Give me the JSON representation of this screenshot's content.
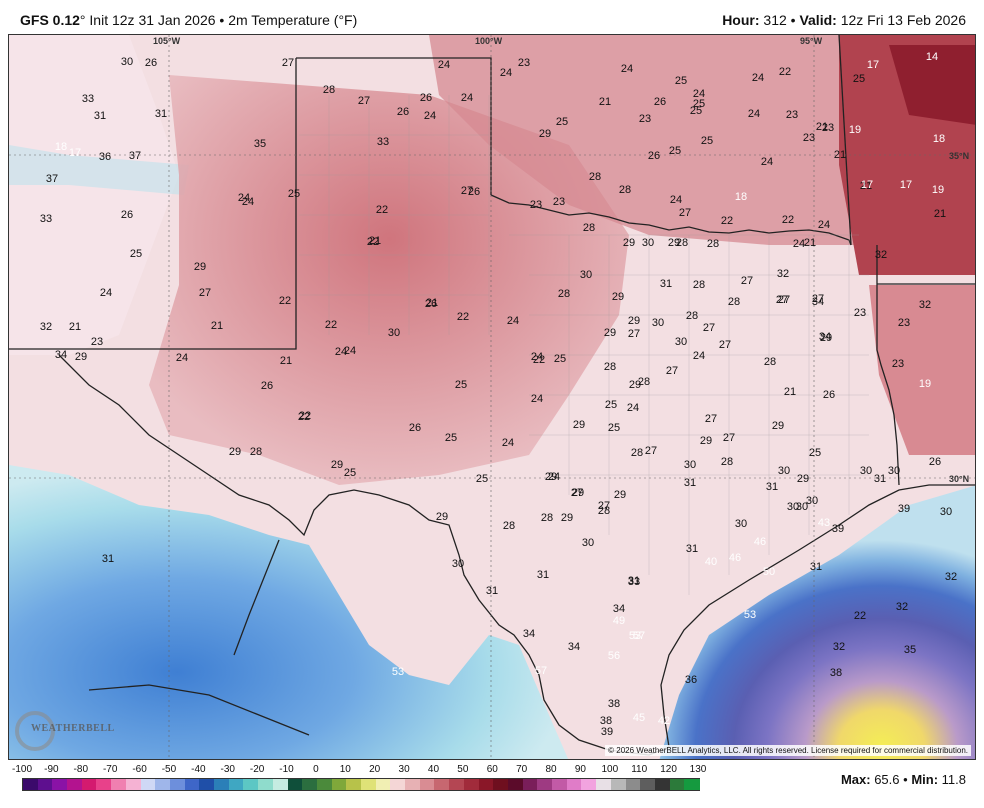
{
  "header": {
    "model": "GFS 0.12",
    "deg": "°",
    "init": "Init 12z 31 Jan 2026",
    "bullet": "•",
    "variable": "2m Temperature (°F)",
    "hour_label": "Hour:",
    "hour": "312",
    "valid_label": "Valid:",
    "valid": "12z Fri 13 Feb 2026"
  },
  "map": {
    "longitude_labels": [
      "105°W",
      "100°W",
      "95°W"
    ],
    "latitude_labels": [
      "35°N",
      "30°N"
    ],
    "copyright": "© 2026 WeatherBELL Analytics, LLC. All rights reserved. License required for commercial distribution.",
    "logo": "WEATHERBELL",
    "temps": [
      {
        "v": "30"
      },
      {
        "v": "26"
      },
      {
        "v": "27"
      },
      {
        "v": "24"
      },
      {
        "v": "24"
      },
      {
        "v": "23"
      },
      {
        "v": "24"
      },
      {
        "v": "24"
      },
      {
        "v": "22"
      },
      {
        "v": "17"
      },
      {
        "v": "14"
      },
      {
        "v": "33"
      },
      {
        "v": "31"
      },
      {
        "v": "31"
      },
      {
        "v": "28"
      },
      {
        "v": "27"
      },
      {
        "v": "26"
      },
      {
        "v": "26"
      },
      {
        "v": "24"
      },
      {
        "v": "24"
      },
      {
        "v": "25"
      },
      {
        "v": "24"
      },
      {
        "v": "25"
      },
      {
        "v": "18"
      },
      {
        "v": "17"
      },
      {
        "v": "36"
      },
      {
        "v": "37"
      },
      {
        "v": "35"
      },
      {
        "v": "33"
      },
      {
        "v": "29"
      },
      {
        "v": "25"
      },
      {
        "v": "21"
      },
      {
        "v": "23"
      },
      {
        "v": "26"
      },
      {
        "v": "25"
      },
      {
        "v": "25"
      },
      {
        "v": "24"
      },
      {
        "v": "23"
      },
      {
        "v": "21"
      },
      {
        "v": "19"
      },
      {
        "v": "18"
      },
      {
        "v": "37"
      },
      {
        "v": "24"
      },
      {
        "v": "21"
      },
      {
        "v": "26"
      },
      {
        "v": "25"
      },
      {
        "v": "25"
      },
      {
        "v": "24"
      },
      {
        "v": "23"
      },
      {
        "v": "23"
      },
      {
        "v": "21"
      },
      {
        "v": "21"
      },
      {
        "v": "33"
      },
      {
        "v": "26"
      },
      {
        "v": "24"
      },
      {
        "v": "25"
      },
      {
        "v": "22"
      },
      {
        "v": "26"
      },
      {
        "v": "23"
      },
      {
        "v": "23"
      },
      {
        "v": "28"
      },
      {
        "v": "28"
      },
      {
        "v": "24"
      },
      {
        "v": "18"
      },
      {
        "v": "17"
      },
      {
        "v": "17"
      },
      {
        "v": "19"
      },
      {
        "v": "21"
      },
      {
        "v": "22"
      },
      {
        "v": "26"
      },
      {
        "v": "27"
      },
      {
        "v": "28"
      },
      {
        "v": "27"
      },
      {
        "v": "22"
      },
      {
        "v": "22"
      },
      {
        "v": "24"
      },
      {
        "v": "24"
      },
      {
        "v": "21"
      },
      {
        "v": "32"
      },
      {
        "v": "25"
      },
      {
        "v": "29"
      },
      {
        "v": "29"
      },
      {
        "v": "30"
      },
      {
        "v": "29"
      },
      {
        "v": "28"
      },
      {
        "v": "28"
      },
      {
        "v": "27"
      },
      {
        "v": "32"
      },
      {
        "v": "24"
      },
      {
        "v": "27"
      },
      {
        "v": "30"
      },
      {
        "v": "31"
      },
      {
        "v": "28"
      },
      {
        "v": "27"
      },
      {
        "v": "34"
      },
      {
        "v": "32"
      },
      {
        "v": "21"
      },
      {
        "v": "21"
      },
      {
        "v": "22"
      },
      {
        "v": "21"
      },
      {
        "v": "22"
      },
      {
        "v": "25"
      },
      {
        "v": "28"
      },
      {
        "v": "29"
      },
      {
        "v": "28"
      },
      {
        "v": "27"
      },
      {
        "v": "27"
      },
      {
        "v": "23"
      },
      {
        "v": "32"
      },
      {
        "v": "23"
      },
      {
        "v": "22"
      },
      {
        "v": "22"
      },
      {
        "v": "24"
      },
      {
        "v": "29"
      },
      {
        "v": "29"
      },
      {
        "v": "30"
      },
      {
        "v": "28"
      },
      {
        "v": "27"
      },
      {
        "v": "34"
      },
      {
        "v": "34"
      },
      {
        "v": "29"
      },
      {
        "v": "24"
      },
      {
        "v": "24"
      },
      {
        "v": "24"
      },
      {
        "v": "30"
      },
      {
        "v": "30"
      },
      {
        "v": "27"
      },
      {
        "v": "29"
      },
      {
        "v": "23"
      },
      {
        "v": "21"
      },
      {
        "v": "22"
      },
      {
        "v": "24"
      },
      {
        "v": "28"
      },
      {
        "v": "27"
      },
      {
        "v": "27"
      },
      {
        "v": "24"
      },
      {
        "v": "23"
      },
      {
        "v": "19"
      },
      {
        "v": "26"
      },
      {
        "v": "25"
      },
      {
        "v": "29"
      },
      {
        "v": "28"
      },
      {
        "v": "21"
      },
      {
        "v": "22"
      },
      {
        "v": "24"
      },
      {
        "v": "25"
      },
      {
        "v": "24"
      },
      {
        "v": "29"
      },
      {
        "v": "25"
      },
      {
        "v": "28"
      },
      {
        "v": "27"
      },
      {
        "v": "26"
      },
      {
        "v": "26"
      },
      {
        "v": "25"
      },
      {
        "v": "24"
      },
      {
        "v": "24"
      },
      {
        "v": "29"
      },
      {
        "v": "28"
      },
      {
        "v": "27"
      },
      {
        "v": "28"
      },
      {
        "v": "29"
      },
      {
        "v": "28"
      },
      {
        "v": "27"
      },
      {
        "v": "29"
      },
      {
        "v": "29"
      },
      {
        "v": "28"
      },
      {
        "v": "25"
      },
      {
        "v": "29"
      },
      {
        "v": "25"
      },
      {
        "v": "25"
      },
      {
        "v": "29"
      },
      {
        "v": "30"
      },
      {
        "v": "30"
      },
      {
        "v": "29"
      },
      {
        "v": "30"
      },
      {
        "v": "31"
      },
      {
        "v": "30"
      },
      {
        "v": "26"
      },
      {
        "v": "27"
      },
      {
        "v": "27"
      },
      {
        "v": "29"
      },
      {
        "v": "31"
      },
      {
        "v": "31"
      },
      {
        "v": "30"
      },
      {
        "v": "30"
      },
      {
        "v": "30"
      },
      {
        "v": "39"
      },
      {
        "v": "39"
      },
      {
        "v": "30"
      },
      {
        "v": "29"
      },
      {
        "v": "28"
      },
      {
        "v": "28"
      },
      {
        "v": "29"
      },
      {
        "v": "30"
      },
      {
        "v": "30"
      },
      {
        "v": "46"
      },
      {
        "v": "43"
      },
      {
        "v": "31"
      },
      {
        "v": "30"
      },
      {
        "v": "31"
      },
      {
        "v": "31"
      },
      {
        "v": "31"
      },
      {
        "v": "31"
      },
      {
        "v": "40"
      },
      {
        "v": "46"
      },
      {
        "v": "50"
      },
      {
        "v": "31"
      },
      {
        "v": "32"
      },
      {
        "v": "33"
      },
      {
        "v": "34"
      },
      {
        "v": "49"
      },
      {
        "v": "53"
      },
      {
        "v": "53"
      },
      {
        "v": "22"
      },
      {
        "v": "32"
      },
      {
        "v": "34"
      },
      {
        "v": "34"
      },
      {
        "v": "56"
      },
      {
        "v": "57"
      },
      {
        "v": "32"
      },
      {
        "v": "35"
      },
      {
        "v": "53"
      },
      {
        "v": "57"
      },
      {
        "v": "36"
      },
      {
        "v": "38"
      },
      {
        "v": "38"
      },
      {
        "v": "38"
      },
      {
        "v": "45"
      },
      {
        "v": "39"
      },
      {
        "v": "42"
      }
    ]
  },
  "colorbar": {
    "ticks": [
      "-100",
      "-90",
      "-80",
      "-70",
      "-60",
      "-50",
      "-40",
      "-30",
      "-20",
      "-10",
      "0",
      "10",
      "20",
      "30",
      "40",
      "50",
      "60",
      "70",
      "80",
      "90",
      "100",
      "110",
      "120",
      "130"
    ],
    "colors": [
      "#3b0a6b",
      "#5e0f8f",
      "#8a12a6",
      "#b3138f",
      "#d41a6f",
      "#e8418a",
      "#f07fb0",
      "#f5b2d3",
      "#cfd8f5",
      "#9fb6ea",
      "#6d8fdc",
      "#3e66c8",
      "#1f4fa8",
      "#2b7fb8",
      "#3fa7c2",
      "#5cc7c4",
      "#8fdccc",
      "#c5ece1",
      "#0f4f3a",
      "#2b6e3f",
      "#4b8a3b",
      "#7fa83a",
      "#b7c24a",
      "#dfe277",
      "#f1efb3",
      "#f4d6d6",
      "#e7b1b4",
      "#d98c93",
      "#c76770",
      "#b44653",
      "#a12b3b",
      "#8a1728",
      "#6f0f1f",
      "#5b0b2a",
      "#7a1e5a",
      "#9e3a82",
      "#c25aa6",
      "#e07cc8",
      "#f2a3df",
      "#e8e0e6",
      "#b8b8b8",
      "#8c8c8c",
      "#5e5e5e",
      "#343434",
      "#2c7a3a",
      "#159a3f"
    ]
  },
  "stats": {
    "max_label": "Max:",
    "max": "65.6",
    "min_label": "Min:",
    "min": "11.8"
  }
}
